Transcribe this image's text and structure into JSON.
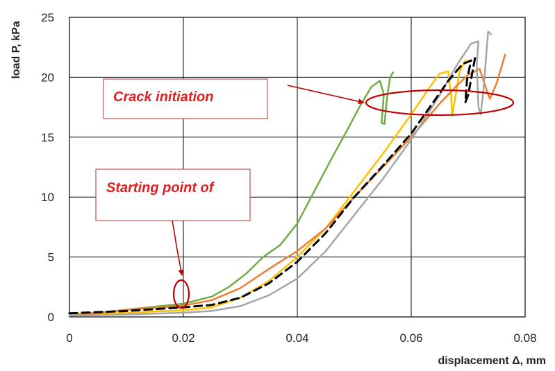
{
  "chart_data": {
    "type": "line",
    "title": "",
    "xlabel": "displacement Δ, mm",
    "ylabel": "load P, kPa",
    "xlim": [
      0,
      0.08
    ],
    "ylim": [
      0,
      25
    ],
    "x_ticks": [
      "0",
      "0.02",
      "0.04",
      "0.06",
      "0.08"
    ],
    "y_ticks": [
      "0",
      "5",
      "10",
      "15",
      "20",
      "25"
    ],
    "grid": true,
    "legend": "none",
    "series": [
      {
        "color": "#70ad47",
        "style": "solid",
        "points": [
          [
            0,
            0.2
          ],
          [
            0.005,
            0.35
          ],
          [
            0.01,
            0.6
          ],
          [
            0.015,
            0.85
          ],
          [
            0.02,
            1.1
          ],
          [
            0.025,
            1.7
          ],
          [
            0.028,
            2.5
          ],
          [
            0.031,
            3.6
          ],
          [
            0.034,
            5.0
          ],
          [
            0.037,
            6.0
          ],
          [
            0.04,
            7.8
          ],
          [
            0.043,
            10.5
          ],
          [
            0.046,
            13.2
          ],
          [
            0.049,
            15.8
          ],
          [
            0.051,
            17.6
          ],
          [
            0.053,
            19.2
          ],
          [
            0.0545,
            19.7
          ],
          [
            0.0552,
            18.6
          ],
          [
            0.0548,
            16.2
          ],
          [
            0.0553,
            16.1
          ],
          [
            0.0558,
            18.5
          ],
          [
            0.0563,
            20.0
          ],
          [
            0.0568,
            20.4
          ]
        ]
      },
      {
        "color": "#ffc000",
        "style": "solid",
        "points": [
          [
            0,
            0.2
          ],
          [
            0.01,
            0.35
          ],
          [
            0.02,
            0.55
          ],
          [
            0.025,
            0.8
          ],
          [
            0.03,
            1.6
          ],
          [
            0.035,
            3.0
          ],
          [
            0.04,
            5.0
          ],
          [
            0.045,
            7.4
          ],
          [
            0.05,
            10.5
          ],
          [
            0.055,
            13.6
          ],
          [
            0.06,
            16.9
          ],
          [
            0.063,
            19.0
          ],
          [
            0.065,
            20.3
          ],
          [
            0.0665,
            20.5
          ],
          [
            0.067,
            18.5
          ],
          [
            0.0672,
            16.8
          ],
          [
            0.0678,
            18.5
          ],
          [
            0.0685,
            20.5
          ],
          [
            0.0695,
            21.4
          ]
        ]
      },
      {
        "color": "#ed7d31",
        "style": "solid",
        "points": [
          [
            0,
            0.1
          ],
          [
            0.005,
            0.3
          ],
          [
            0.01,
            0.6
          ],
          [
            0.015,
            0.75
          ],
          [
            0.02,
            0.95
          ],
          [
            0.025,
            1.4
          ],
          [
            0.03,
            2.4
          ],
          [
            0.035,
            4.0
          ],
          [
            0.04,
            5.5
          ],
          [
            0.045,
            7.4
          ],
          [
            0.05,
            10.0
          ],
          [
            0.055,
            12.5
          ],
          [
            0.06,
            15.0
          ],
          [
            0.065,
            17.8
          ],
          [
            0.068,
            19.3
          ],
          [
            0.07,
            20.2
          ],
          [
            0.072,
            20.7
          ],
          [
            0.0732,
            19.0
          ],
          [
            0.0738,
            18.2
          ],
          [
            0.075,
            19.5
          ],
          [
            0.0765,
            21.9
          ]
        ]
      },
      {
        "color": "#a5a5a5",
        "style": "solid",
        "points": [
          [
            0,
            0.1
          ],
          [
            0.01,
            0.2
          ],
          [
            0.02,
            0.35
          ],
          [
            0.025,
            0.5
          ],
          [
            0.03,
            0.9
          ],
          [
            0.035,
            1.8
          ],
          [
            0.04,
            3.2
          ],
          [
            0.045,
            5.5
          ],
          [
            0.05,
            8.5
          ],
          [
            0.055,
            11.5
          ],
          [
            0.06,
            14.8
          ],
          [
            0.065,
            18.5
          ],
          [
            0.068,
            21.0
          ],
          [
            0.0705,
            22.8
          ],
          [
            0.0718,
            23.0
          ],
          [
            0.0715,
            21.0
          ],
          [
            0.0718,
            17.5
          ],
          [
            0.0722,
            16.9
          ],
          [
            0.0727,
            19.0
          ],
          [
            0.0735,
            23.8
          ],
          [
            0.074,
            23.6
          ]
        ]
      },
      {
        "color": "#000000",
        "style": "dashed",
        "points": [
          [
            0,
            0.3
          ],
          [
            0.01,
            0.5
          ],
          [
            0.02,
            0.8
          ],
          [
            0.025,
            1.0
          ],
          [
            0.03,
            1.6
          ],
          [
            0.035,
            2.8
          ],
          [
            0.04,
            4.6
          ],
          [
            0.045,
            7.0
          ],
          [
            0.05,
            10.0
          ],
          [
            0.055,
            12.6
          ],
          [
            0.06,
            15.3
          ],
          [
            0.064,
            18.0
          ],
          [
            0.0665,
            19.7
          ],
          [
            0.069,
            21.1
          ],
          [
            0.0705,
            21.4
          ],
          [
            0.0698,
            19.8
          ],
          [
            0.0695,
            17.9
          ],
          [
            0.07,
            18.5
          ],
          [
            0.0712,
            21.6
          ]
        ]
      }
    ],
    "annotations": [
      {
        "text": "Crack initiation",
        "color": "#e02020"
      },
      {
        "text": "Starting point of",
        "color": "#e02020"
      }
    ],
    "annotation_color": "#c00000"
  }
}
